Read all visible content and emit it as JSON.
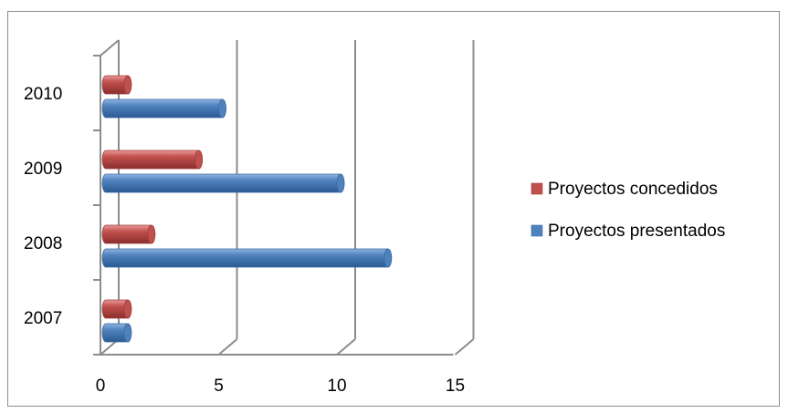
{
  "chart_data": {
    "type": "bar",
    "orientation": "horizontal",
    "style": "3d-cylinder",
    "categories": [
      "2007",
      "2008",
      "2009",
      "2010"
    ],
    "series": [
      {
        "name": "Proyectos presentados",
        "values": [
          1,
          12,
          10,
          5
        ],
        "color": "#4f81bd"
      },
      {
        "name": "Proyectos concedidos",
        "values": [
          1,
          2,
          4,
          1
        ],
        "color": "#c0504d"
      }
    ],
    "xlim": [
      0,
      15
    ],
    "x_ticks": [
      "0",
      "5",
      "10",
      "15"
    ],
    "legend": {
      "position": "right",
      "entries": [
        "Proyectos concedidos",
        "Proyectos presentados"
      ]
    },
    "grid": true
  }
}
